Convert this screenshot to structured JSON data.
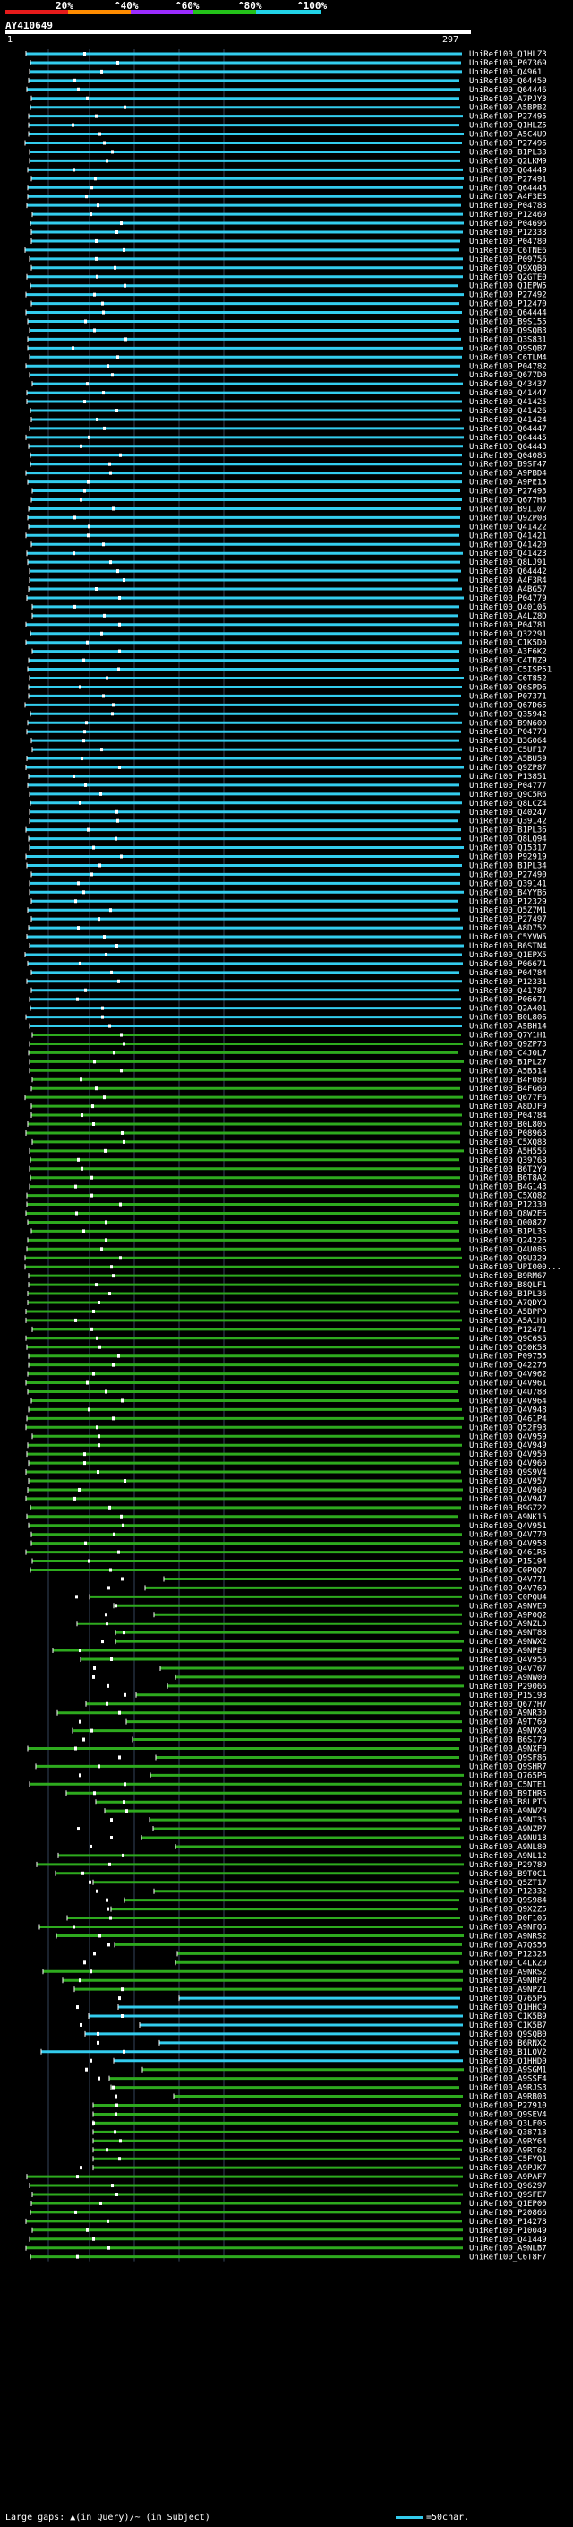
{
  "legend": {
    "labels": [
      "20%",
      "^40%",
      "^60%",
      "^80%",
      "^100%"
    ],
    "colors": [
      "#e61b1b",
      "#ff8c00",
      "#9b2cff",
      "#24c21a",
      "#22d3e8"
    ]
  },
  "query": {
    "title": "AY410649",
    "start": "1",
    "end": "297"
  },
  "footer": {
    "text": "Large gaps: ▲(in Query)/~ (in Subject)",
    "scale": "=50char."
  },
  "colors": {
    "cyan": "#33ccee",
    "green": "#2eaa1e",
    "grid": "#33445a",
    "mark": "#000000"
  },
  "hits": [
    {
      "label": "UniRef100_Q1HLZ3",
      "color": "cyan"
    },
    {
      "label": "UniRef100_P07369",
      "color": "cyan"
    },
    {
      "label": "UniRef100_Q4961",
      "color": "cyan"
    },
    {
      "label": "UniRef100_Q64450",
      "color": "cyan"
    },
    {
      "label": "UniRef100_Q64446",
      "color": "cyan"
    },
    {
      "label": "UniRef100_A7PJY3",
      "color": "cyan"
    },
    {
      "label": "UniRef100_A5BPB2",
      "color": "cyan"
    },
    {
      "label": "UniRef100_P27495",
      "color": "cyan"
    },
    {
      "label": "UniRef100_Q1HLZ5",
      "color": "cyan"
    },
    {
      "label": "UniRef100_A5C4U9",
      "color": "cyan"
    },
    {
      "label": "UniRef100_P27496",
      "color": "cyan"
    },
    {
      "label": "UniRef100_B1PL33",
      "color": "cyan"
    },
    {
      "label": "UniRef100_Q2LKM9",
      "color": "cyan"
    },
    {
      "label": "UniRef100_Q64449",
      "color": "cyan"
    },
    {
      "label": "UniRef100_P27491",
      "color": "cyan"
    },
    {
      "label": "UniRef100_Q64448",
      "color": "cyan"
    },
    {
      "label": "UniRef100_A4F3E3",
      "color": "cyan"
    },
    {
      "label": "UniRef100_P04783",
      "color": "cyan"
    },
    {
      "label": "UniRef100_P12469",
      "color": "cyan"
    },
    {
      "label": "UniRef100_P04696",
      "color": "cyan"
    },
    {
      "label": "UniRef100_P12333",
      "color": "cyan"
    },
    {
      "label": "UniRef100_P04780",
      "color": "cyan"
    },
    {
      "label": "UniRef100_C6TNE6",
      "color": "cyan"
    },
    {
      "label": "UniRef100_P09756",
      "color": "cyan"
    },
    {
      "label": "UniRef100_Q9XQB0",
      "color": "cyan"
    },
    {
      "label": "UniRef100_Q2GTE0",
      "color": "cyan"
    },
    {
      "label": "UniRef100_Q1EPW5",
      "color": "cyan"
    },
    {
      "label": "UniRef100_P27492",
      "color": "cyan"
    },
    {
      "label": "UniRef100_P12470",
      "color": "cyan"
    },
    {
      "label": "UniRef100_Q64444",
      "color": "cyan"
    },
    {
      "label": "UniRef100_B9S155",
      "color": "cyan"
    },
    {
      "label": "UniRef100_Q9SQB3",
      "color": "cyan"
    },
    {
      "label": "UniRef100_Q3S831",
      "color": "cyan"
    },
    {
      "label": "UniRef100_Q9SQB7",
      "color": "cyan"
    },
    {
      "label": "UniRef100_C6TLM4",
      "color": "cyan"
    },
    {
      "label": "UniRef100_P04782",
      "color": "cyan"
    },
    {
      "label": "UniRef100_Q677D0",
      "color": "cyan"
    },
    {
      "label": "UniRef100_Q43437",
      "color": "cyan"
    },
    {
      "label": "UniRef100_Q41447",
      "color": "cyan"
    },
    {
      "label": "UniRef100_Q41425",
      "color": "cyan"
    },
    {
      "label": "UniRef100_Q41426",
      "color": "cyan"
    },
    {
      "label": "UniRef100_Q41424",
      "color": "cyan"
    },
    {
      "label": "UniRef100_Q64447",
      "color": "cyan"
    },
    {
      "label": "UniRef100_Q64445",
      "color": "cyan"
    },
    {
      "label": "UniRef100_Q64443",
      "color": "cyan"
    },
    {
      "label": "UniRef100_Q04085",
      "color": "cyan"
    },
    {
      "label": "UniRef100_B9SF47",
      "color": "cyan"
    },
    {
      "label": "UniRef100_A9PBD4",
      "color": "cyan"
    },
    {
      "label": "UniRef100_A9PE15",
      "color": "cyan"
    },
    {
      "label": "UniRef100_P27493",
      "color": "cyan"
    },
    {
      "label": "UniRef100_Q677H3",
      "color": "cyan"
    },
    {
      "label": "UniRef100_B9I107",
      "color": "cyan"
    },
    {
      "label": "UniRef100_Q9ZP08",
      "color": "cyan"
    },
    {
      "label": "UniRef100_Q41422",
      "color": "cyan"
    },
    {
      "label": "UniRef100_Q41421",
      "color": "cyan"
    },
    {
      "label": "UniRef100_Q41420",
      "color": "cyan"
    },
    {
      "label": "UniRef100_Q41423",
      "color": "cyan"
    },
    {
      "label": "UniRef100_Q8LJ91",
      "color": "cyan"
    },
    {
      "label": "UniRef100_Q64442",
      "color": "cyan"
    },
    {
      "label": "UniRef100_A4F3R4",
      "color": "cyan"
    },
    {
      "label": "UniRef100_A4BG57",
      "color": "cyan"
    },
    {
      "label": "UniRef100_P04779",
      "color": "cyan"
    },
    {
      "label": "UniRef100_Q40105",
      "color": "cyan"
    },
    {
      "label": "UniRef100_A4LZ8D",
      "color": "cyan"
    },
    {
      "label": "UniRef100_P04781",
      "color": "cyan"
    },
    {
      "label": "UniRef100_Q32291",
      "color": "cyan"
    },
    {
      "label": "UniRef100_C1K5D0",
      "color": "cyan"
    },
    {
      "label": "UniRef100_A3F6K2",
      "color": "cyan"
    },
    {
      "label": "UniRef100_C4TNZ9",
      "color": "cyan"
    },
    {
      "label": "UniRef100_C5ISP51",
      "color": "cyan"
    },
    {
      "label": "UniRef100_C6T852",
      "color": "cyan"
    },
    {
      "label": "UniRef100_Q6SPD6",
      "color": "cyan"
    },
    {
      "label": "UniRef100_P07371",
      "color": "cyan"
    },
    {
      "label": "UniRef100_Q67D65",
      "color": "cyan"
    },
    {
      "label": "UniRef100_Q35942",
      "color": "cyan"
    },
    {
      "label": "UniRef100_B9N600",
      "color": "cyan"
    },
    {
      "label": "UniRef100_P04778",
      "color": "cyan"
    },
    {
      "label": "UniRef100_B3G064",
      "color": "cyan"
    },
    {
      "label": "UniRef100_C5UF17",
      "color": "cyan"
    },
    {
      "label": "UniRef100_A5BU59",
      "color": "cyan"
    },
    {
      "label": "UniRef100_Q9ZP87",
      "color": "cyan"
    },
    {
      "label": "UniRef100_P13851",
      "color": "cyan"
    },
    {
      "label": "UniRef100_P04777",
      "color": "cyan"
    },
    {
      "label": "UniRef100_Q9C5R6",
      "color": "cyan"
    },
    {
      "label": "UniRef100_Q8LCZ4",
      "color": "cyan"
    },
    {
      "label": "UniRef100_Q40247",
      "color": "cyan"
    },
    {
      "label": "UniRef100_Q39142",
      "color": "cyan"
    },
    {
      "label": "UniRef100_B1PL36",
      "color": "cyan"
    },
    {
      "label": "UniRef100_Q8LQ94",
      "color": "cyan"
    },
    {
      "label": "UniRef100_Q15317",
      "color": "cyan"
    },
    {
      "label": "UniRef100_P92919",
      "color": "cyan"
    },
    {
      "label": "UniRef100_B1PL34",
      "color": "cyan"
    },
    {
      "label": "UniRef100_P27490",
      "color": "cyan"
    },
    {
      "label": "UniRef100_Q39141",
      "color": "cyan"
    },
    {
      "label": "UniRef100_B4YYB6",
      "color": "cyan"
    },
    {
      "label": "UniRef100_P12329",
      "color": "cyan"
    },
    {
      "label": "UniRef100_Q5Z7M1",
      "color": "cyan"
    },
    {
      "label": "UniRef100_P27497",
      "color": "cyan"
    },
    {
      "label": "UniRef100_A8D752",
      "color": "cyan"
    },
    {
      "label": "UniRef100_C5YVW5",
      "color": "cyan"
    },
    {
      "label": "UniRef100_B6STN4",
      "color": "cyan"
    },
    {
      "label": "UniRef100_Q1EPX5",
      "color": "cyan"
    },
    {
      "label": "UniRef100_P06671",
      "color": "cyan"
    },
    {
      "label": "UniRef100_P04784",
      "color": "cyan"
    },
    {
      "label": "UniRef100_P12331",
      "color": "cyan"
    },
    {
      "label": "UniRef100_Q41787",
      "color": "cyan"
    },
    {
      "label": "UniRef100_P06671",
      "color": "cyan"
    },
    {
      "label": "UniRef100_Q2A401",
      "color": "cyan"
    },
    {
      "label": "UniRef100_B0L806",
      "color": "cyan"
    },
    {
      "label": "UniRef100_A5BH14",
      "color": "cyan"
    },
    {
      "label": "UniRef100_Q7Y1H1",
      "color": "green"
    },
    {
      "label": "UniRef100_Q9ZP73",
      "color": "green"
    },
    {
      "label": "UniRef100_C4J0L7",
      "color": "green"
    },
    {
      "label": "UniRef100_B1PL27",
      "color": "green"
    },
    {
      "label": "UniRef100_A5B514",
      "color": "green"
    },
    {
      "label": "UniRef100_B4F080",
      "color": "green"
    },
    {
      "label": "UniRef100_B4FG60",
      "color": "green"
    },
    {
      "label": "UniRef100_Q677F6",
      "color": "green"
    },
    {
      "label": "UniRef100_A8DJF9",
      "color": "green"
    },
    {
      "label": "UniRef100_P04784",
      "color": "green"
    },
    {
      "label": "UniRef100_B0L805",
      "color": "green"
    },
    {
      "label": "UniRef100_P08963",
      "color": "green"
    },
    {
      "label": "UniRef100_C5XQ83",
      "color": "green"
    },
    {
      "label": "UniRef100_A5H556",
      "color": "green"
    },
    {
      "label": "UniRef100_Q39768",
      "color": "green"
    },
    {
      "label": "UniRef100_B6T2Y9",
      "color": "green"
    },
    {
      "label": "UniRef100_B6T8A2",
      "color": "green"
    },
    {
      "label": "UniRef100_B4G143",
      "color": "green"
    },
    {
      "label": "UniRef100_C5XQ82",
      "color": "green"
    },
    {
      "label": "UniRef100_P12330",
      "color": "green"
    },
    {
      "label": "UniRef100_Q8W2E6",
      "color": "green"
    },
    {
      "label": "UniRef100_Q00827",
      "color": "green"
    },
    {
      "label": "UniRef100_B1PL35",
      "color": "green"
    },
    {
      "label": "UniRef100_Q24226",
      "color": "green"
    },
    {
      "label": "UniRef100_Q4U085",
      "color": "green"
    },
    {
      "label": "UniRef100_Q9U329",
      "color": "green"
    },
    {
      "label": "UniRef100_UPI000...",
      "color": "green"
    },
    {
      "label": "UniRef100_B9RM67",
      "color": "green"
    },
    {
      "label": "UniRef100_B8QLF1",
      "color": "green"
    },
    {
      "label": "UniRef100_B1PL36",
      "color": "green"
    },
    {
      "label": "UniRef100_A7QDY3",
      "color": "green"
    },
    {
      "label": "UniRef100_A5BPP0",
      "color": "green"
    },
    {
      "label": "UniRef100_A5A1H0",
      "color": "green"
    },
    {
      "label": "UniRef100_P12471",
      "color": "green"
    },
    {
      "label": "UniRef100_Q9C6S5",
      "color": "green"
    },
    {
      "label": "UniRef100_Q50K58",
      "color": "green"
    },
    {
      "label": "UniRef100_P09755",
      "color": "green"
    },
    {
      "label": "UniRef100_Q42276",
      "color": "green"
    },
    {
      "label": "UniRef100_Q4V962",
      "color": "green"
    },
    {
      "label": "UniRef100_Q4V961",
      "color": "green"
    },
    {
      "label": "UniRef100_Q4U788",
      "color": "green"
    },
    {
      "label": "UniRef100_Q4V964",
      "color": "green"
    },
    {
      "label": "UniRef100_Q4V948",
      "color": "green"
    },
    {
      "label": "UniRef100_Q461P4",
      "color": "green"
    },
    {
      "label": "UniRef100_Q52F93",
      "color": "green"
    },
    {
      "label": "UniRef100_Q4V959",
      "color": "green"
    },
    {
      "label": "UniRef100_Q4V949",
      "color": "green"
    },
    {
      "label": "UniRef100_Q4V950",
      "color": "green"
    },
    {
      "label": "UniRef100_Q4V960",
      "color": "green"
    },
    {
      "label": "UniRef100_Q9S9V4",
      "color": "green"
    },
    {
      "label": "UniRef100_Q4V957",
      "color": "green"
    },
    {
      "label": "UniRef100_Q4V969",
      "color": "green"
    },
    {
      "label": "UniRef100_Q4V947",
      "color": "green"
    },
    {
      "label": "UniRef100_B9GZ22",
      "color": "green"
    },
    {
      "label": "UniRef100_A9NK15",
      "color": "green"
    },
    {
      "label": "UniRef100_Q4V951",
      "color": "green"
    },
    {
      "label": "UniRef100_Q4V770",
      "color": "green"
    },
    {
      "label": "UniRef100_Q4V958",
      "color": "green"
    },
    {
      "label": "UniRef100_Q461R5",
      "color": "green"
    },
    {
      "label": "UniRef100_P15194",
      "color": "green"
    },
    {
      "label": "UniRef100_C0PQQ7",
      "color": "green"
    },
    {
      "label": "UniRef100_Q4V771",
      "color": "green"
    },
    {
      "label": "UniRef100_Q4V769",
      "color": "green"
    },
    {
      "label": "UniRef100_C0PQU4",
      "color": "green"
    },
    {
      "label": "UniRef100_A9NVE0",
      "color": "green"
    },
    {
      "label": "UniRef100_A9P0Q2",
      "color": "green"
    },
    {
      "label": "UniRef100_A9NZL0",
      "color": "green"
    },
    {
      "label": "UniRef100_A9NT88",
      "color": "green"
    },
    {
      "label": "UniRef100_A9NWX2",
      "color": "green"
    },
    {
      "label": "UniRef100_A9NPE9",
      "color": "green"
    },
    {
      "label": "UniRef100_Q4V956",
      "color": "green"
    },
    {
      "label": "UniRef100_Q4V767",
      "color": "green"
    },
    {
      "label": "UniRef100_A9NW00",
      "color": "green"
    },
    {
      "label": "UniRef100_P29066",
      "color": "green"
    },
    {
      "label": "UniRef100_P15193",
      "color": "green"
    },
    {
      "label": "UniRef100_Q677H7",
      "color": "green"
    },
    {
      "label": "UniRef100_A9NR30",
      "color": "green"
    },
    {
      "label": "UniRef100_A9T769",
      "color": "green"
    },
    {
      "label": "UniRef100_A9NVX9",
      "color": "green"
    },
    {
      "label": "UniRef100_B6SI79",
      "color": "green"
    },
    {
      "label": "UniRef100_A9NXF0",
      "color": "green"
    },
    {
      "label": "UniRef100_Q9SF86",
      "color": "green"
    },
    {
      "label": "UniRef100_Q9SHR7",
      "color": "green"
    },
    {
      "label": "UniRef100_Q765P6",
      "color": "green"
    },
    {
      "label": "UniRef100_C5NTE1",
      "color": "green"
    },
    {
      "label": "UniRef100_B9IHR5",
      "color": "green"
    },
    {
      "label": "UniRef100_B8LPT5",
      "color": "green"
    },
    {
      "label": "UniRef100_A9NWZ9",
      "color": "green"
    },
    {
      "label": "UniRef100_A9NT35",
      "color": "green"
    },
    {
      "label": "UniRef100_A9NZP7",
      "color": "green"
    },
    {
      "label": "UniRef100_A9NU18",
      "color": "green"
    },
    {
      "label": "UniRef100_A9NL80",
      "color": "green"
    },
    {
      "label": "UniRef100_A9NL12",
      "color": "green"
    },
    {
      "label": "UniRef100_P29789",
      "color": "green"
    },
    {
      "label": "UniRef100_B9T0C1",
      "color": "green"
    },
    {
      "label": "UniRef100_Q5ZT17",
      "color": "green"
    },
    {
      "label": "UniRef100_P12332",
      "color": "green"
    },
    {
      "label": "UniRef100_Q9S984",
      "color": "green"
    },
    {
      "label": "UniRef100_Q9X2Z5",
      "color": "green"
    },
    {
      "label": "UniRef100_D0F105",
      "color": "green"
    },
    {
      "label": "UniRef100_A9NFQ6",
      "color": "green"
    },
    {
      "label": "UniRef100_A9NRS2",
      "color": "green"
    },
    {
      "label": "UniRef100_A7QS56",
      "color": "green"
    },
    {
      "label": "UniRef100_P12328",
      "color": "green"
    },
    {
      "label": "UniRef100_C4LKZ0",
      "color": "green"
    },
    {
      "label": "UniRef100_A9NRS2",
      "color": "green"
    },
    {
      "label": "UniRef100_A9NRP2",
      "color": "green"
    },
    {
      "label": "UniRef100_A9NPZ1",
      "color": "green"
    },
    {
      "label": "UniRef100_Q765P5",
      "color": "cyan"
    },
    {
      "label": "UniRef100_Q1HHC9",
      "color": "cyan"
    },
    {
      "label": "UniRef100_C1K5B9",
      "color": "cyan"
    },
    {
      "label": "UniRef100_C1K5B7",
      "color": "cyan"
    },
    {
      "label": "UniRef100_Q9SQB0",
      "color": "cyan"
    },
    {
      "label": "UniRef100_B6RNX2",
      "color": "cyan"
    },
    {
      "label": "UniRef100_B1LQV2",
      "color": "cyan"
    },
    {
      "label": "UniRef100_Q1HHD0",
      "color": "cyan"
    },
    {
      "label": "UniRef100_A9SGM1",
      "color": "green"
    },
    {
      "label": "UniRef100_A9SSF4",
      "color": "green"
    },
    {
      "label": "UniRef100_A9RJS3",
      "color": "green"
    },
    {
      "label": "UniRef100_A9RB03",
      "color": "green"
    },
    {
      "label": "UniRef100_P27910",
      "color": "green"
    },
    {
      "label": "UniRef100_Q9SEV4",
      "color": "green"
    },
    {
      "label": "UniRef100_Q3LF05",
      "color": "green"
    },
    {
      "label": "UniRef100_Q38713",
      "color": "green"
    },
    {
      "label": "UniRef100_A9RY64",
      "color": "green"
    },
    {
      "label": "UniRef100_A9RT62",
      "color": "green"
    },
    {
      "label": "UniRef100_C5FYQ1",
      "color": "green"
    },
    {
      "label": "UniRef100_A9PJK7",
      "color": "green"
    },
    {
      "label": "UniRef100_A9PAF7",
      "color": "green"
    },
    {
      "label": "UniRef100_Q96297",
      "color": "green"
    },
    {
      "label": "UniRef100_Q9SFE7",
      "color": "green"
    },
    {
      "label": "UniRef100_Q1EP00",
      "color": "green"
    },
    {
      "label": "UniRef100_P20866",
      "color": "green"
    },
    {
      "label": "UniRef100_P14278",
      "color": "green"
    },
    {
      "label": "UniRef100_P10049",
      "color": "green"
    },
    {
      "label": "UniRef100_Q41449",
      "color": "green"
    },
    {
      "label": "UniRef100_A9NLB7",
      "color": "green"
    },
    {
      "label": "UniRef100_C6T8F7",
      "color": "green"
    }
  ]
}
